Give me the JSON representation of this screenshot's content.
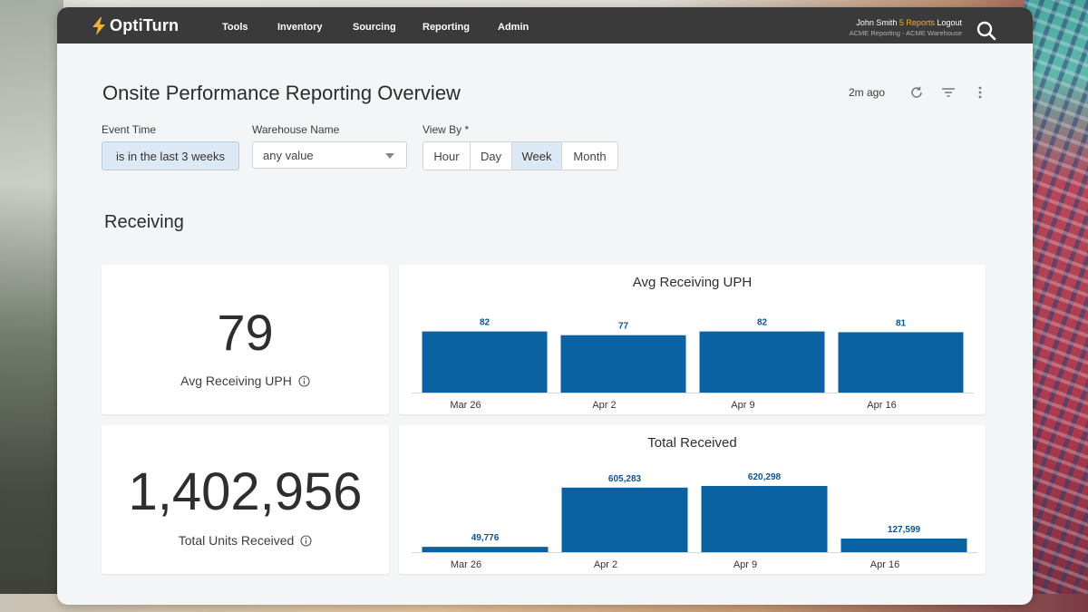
{
  "app": {
    "name": "OptiTurn",
    "nav": [
      "Tools",
      "Inventory",
      "Sourcing",
      "Reporting",
      "Admin"
    ],
    "user": {
      "name": "John Smith",
      "reports_link": "5 Reports",
      "logout": "Logout",
      "context": "ACME Reporting - ACME Warehouse"
    }
  },
  "page": {
    "title": "Onsite Performance Reporting Overview",
    "last_updated": "2m ago"
  },
  "filters": {
    "event_time": {
      "label": "Event Time",
      "value": "is in the last 3 weeks"
    },
    "warehouse": {
      "label": "Warehouse Name",
      "value": "any value"
    },
    "view_by": {
      "label": "View By *",
      "options": [
        "Hour",
        "Day",
        "Week",
        "Month"
      ],
      "selected": "Week"
    }
  },
  "section": {
    "title": "Receiving"
  },
  "kpis": {
    "avg_uph": {
      "value": "79",
      "label": "Avg Receiving UPH"
    },
    "total_units": {
      "value": "1,402,956",
      "label": "Total Units Received"
    }
  },
  "colors": {
    "bar": "#0b62a3",
    "topbar": "#3a3a3a",
    "accent": "#f2b233"
  },
  "chart_data": [
    {
      "type": "bar",
      "title": "Avg Receiving UPH",
      "categories": [
        "Mar 26",
        "Apr 2",
        "Apr 9",
        "Apr 16"
      ],
      "values": [
        82,
        77,
        82,
        81
      ],
      "labels": [
        "82",
        "77",
        "82",
        "81"
      ],
      "ylim": [
        0,
        90
      ]
    },
    {
      "type": "bar",
      "title": "Total Received",
      "categories": [
        "Mar 26",
        "Apr 2",
        "Apr 9",
        "Apr 16"
      ],
      "values": [
        49776,
        605283,
        620298,
        127599
      ],
      "labels": [
        "49,776",
        "605,283",
        "620,298",
        "127,599"
      ],
      "ylim": [
        0,
        620298
      ]
    }
  ]
}
